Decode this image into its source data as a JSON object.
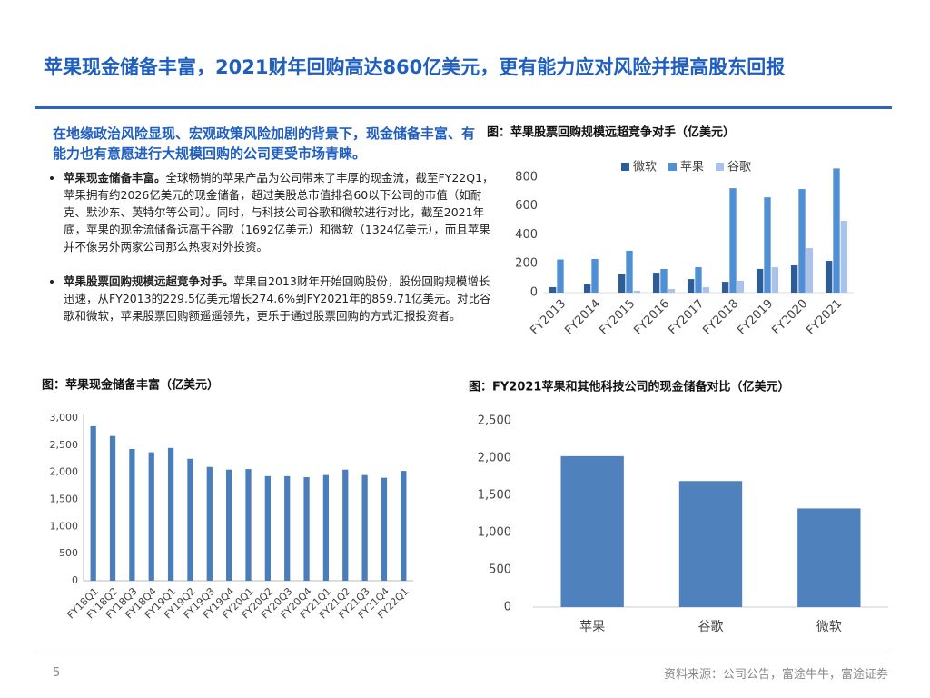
{
  "header": {
    "title": "苹果现金储备丰富，2021财年回购高达860亿美元，更有能力应对风险并提高股东回报"
  },
  "body": {
    "intro": "在地缘政治风险显现、宏观政策风险加剧的背景下，现金储备丰富、有能力也有意愿进行大规模回购的公司更受市场青睐。",
    "bullets": [
      {
        "lead": "苹果现金储备丰富。",
        "text": "全球畅销的苹果产品为公司带来了丰厚的现金流，截至FY22Q1，苹果拥有约2026亿美元的现金储备，超过美股总市值排名60以下公司的市值（如耐克、默沙东、英特尔等公司）。同时，与科技公司谷歌和微软进行对比，截至2021年底，苹果的现金流储备远高于谷歌（1692亿美元）和微软（1324亿美元），而且苹果并不像另外两家公司那么热衷对外投资。"
      },
      {
        "lead": "苹果股票回购规模远超竞争对手。",
        "text": "苹果自2013财年开始回购股份，股份回购规模增长迅速，从FY2013的229.5亿美元增长274.6%到FY2021年的859.71亿美元。对比谷歌和微软，苹果股票回购额遥遥领先，更乐于通过股票回购的方式汇报投资者。"
      }
    ]
  },
  "chart_data": [
    {
      "type": "bar",
      "title": "图：苹果股票回购规模远超竞争对手（亿美元）",
      "categories": [
        "FY2013",
        "FY2014",
        "FY2015",
        "FY2016",
        "FY2017",
        "FY2018",
        "FY2019",
        "FY2020",
        "FY2021"
      ],
      "series": [
        {
          "name": "微软",
          "color": "#2e5c97",
          "values": [
            38,
            57,
            126,
            138,
            94,
            75,
            164,
            189,
            220
          ]
        },
        {
          "name": "苹果",
          "color": "#4f8fd6",
          "values": [
            229.5,
            233,
            290,
            164,
            176,
            723,
            660,
            717,
            859.71
          ]
        },
        {
          "name": "谷歌",
          "color": "#a9c3ea",
          "values": [
            0,
            0,
            13,
            25,
            38,
            82,
            176,
            308,
            497
          ]
        }
      ],
      "ylim": [
        0,
        900
      ],
      "yticks": [
        0,
        200,
        400,
        600,
        800
      ],
      "grid": false,
      "legend": "top"
    },
    {
      "type": "bar",
      "title": "图：苹果现金储备丰富（亿美元）",
      "categories": [
        "FY18Q1",
        "FY18Q2",
        "FY18Q3",
        "FY18Q4",
        "FY19Q1",
        "FY19Q2",
        "FY19Q3",
        "FY19Q4",
        "FY20Q1",
        "FY20Q2",
        "FY20Q3",
        "FY20Q4",
        "FY21Q1",
        "FY21Q2",
        "FY21Q3",
        "FY21Q4",
        "FY22Q1"
      ],
      "values": [
        2850,
        2670,
        2430,
        2370,
        2450,
        2250,
        2100,
        2050,
        2060,
        1930,
        1930,
        1910,
        1950,
        2050,
        1950,
        1900,
        2026
      ],
      "color": "#4a7ebb",
      "ylim": [
        0,
        3000
      ],
      "yticks": [
        0,
        500,
        {
          "value": 1000,
          "label": "1,000"
        },
        {
          "value": 1500,
          "label": "1,500"
        },
        {
          "value": 2000,
          "label": "2,000"
        },
        {
          "value": 2500,
          "label": "2,500"
        },
        {
          "value": 3000,
          "label": "3,000"
        }
      ],
      "grid": false
    },
    {
      "type": "bar",
      "title": "图：FY2021苹果和其他科技公司的现金储备对比（亿美元）",
      "categories": [
        "苹果",
        "谷歌",
        "微软"
      ],
      "values": [
        2026,
        1692,
        1324
      ],
      "color": "#4f81bd",
      "ylim": [
        0,
        2500
      ],
      "yticks": [
        0,
        500,
        {
          "value": 1000,
          "label": "1,000"
        },
        {
          "value": 1500,
          "label": "1,500"
        },
        {
          "value": 2000,
          "label": "2,000"
        },
        {
          "value": 2500,
          "label": "2,500"
        }
      ],
      "grid": false
    }
  ],
  "footer": {
    "page": "5",
    "source": "资料来源：公司公告，富途牛牛，富途证券"
  }
}
